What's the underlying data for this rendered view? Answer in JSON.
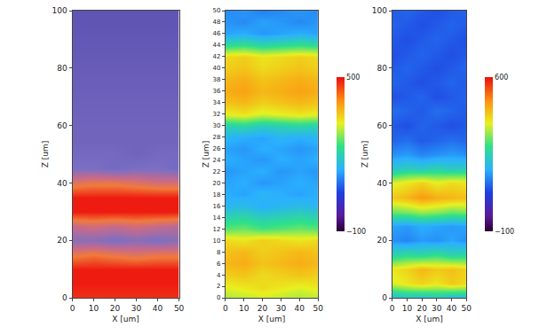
{
  "chart_data": [
    {
      "type": "heatmap",
      "xlabel": "X [um]",
      "ylabel": "Z [um]",
      "x": [
        0,
        10,
        20,
        30,
        40,
        50
      ],
      "y": [
        0,
        5,
        10,
        15,
        20,
        25,
        30,
        35,
        40,
        45,
        50,
        55,
        60,
        65,
        70,
        75,
        80,
        85,
        90,
        95,
        100
      ],
      "z": [
        [
          0.95,
          0.95,
          0.95,
          0.95,
          0.95,
          0.95
        ],
        [
          1,
          1,
          1,
          1,
          1,
          1
        ],
        [
          1,
          1,
          1,
          1,
          1,
          1
        ],
        [
          0.7,
          0.75,
          0.7,
          0.65,
          0.7,
          0.7
        ],
        [
          0.35,
          0.35,
          0.3,
          0.35,
          0.3,
          0.35
        ],
        [
          0.55,
          0.6,
          0.55,
          0.6,
          0.55,
          0.5
        ],
        [
          1,
          1,
          1,
          1,
          1,
          1
        ],
        [
          1,
          1,
          1,
          1,
          1,
          1
        ],
        [
          0.65,
          0.7,
          0.7,
          0.65,
          0.6,
          0.6
        ],
        [
          0.3,
          0.3,
          0.25,
          0.3,
          0.3,
          0.25
        ],
        [
          0.25,
          0.25,
          0.25,
          0.2,
          0.25,
          0.25
        ],
        [
          0.2,
          0.2,
          0.2,
          0.2,
          0.2,
          0.2
        ],
        [
          0.2,
          0.2,
          0.2,
          0.2,
          0.2,
          0.2
        ],
        [
          0.18,
          0.18,
          0.18,
          0.18,
          0.18,
          0.18
        ],
        [
          0.16,
          0.16,
          0.16,
          0.16,
          0.16,
          0.16
        ],
        [
          0.14,
          0.14,
          0.14,
          0.14,
          0.14,
          0.14
        ],
        [
          0.12,
          0.12,
          0.12,
          0.12,
          0.12,
          0.12
        ],
        [
          0.1,
          0.1,
          0.1,
          0.1,
          0.1,
          0.1
        ],
        [
          0.08,
          0.08,
          0.08,
          0.08,
          0.08,
          0.08
        ],
        [
          0.06,
          0.06,
          0.06,
          0.06,
          0.06,
          0.06
        ],
        [
          0.05,
          0.05,
          0.05,
          0.05,
          0.05,
          0.05
        ]
      ],
      "zlim": [
        0,
        1
      ],
      "xlim": [
        0,
        50
      ],
      "xticks": [
        0,
        10,
        20,
        30,
        40,
        50
      ],
      "ylim": [
        0,
        100
      ],
      "yticks": [
        0,
        20,
        40,
        60,
        80,
        100
      ]
    },
    {
      "type": "heatmap",
      "xlabel": "X [um]",
      "ylabel": "Z [um]",
      "x": [
        0,
        10,
        20,
        30,
        40,
        50
      ],
      "y": [
        0,
        2,
        4,
        6,
        8,
        10,
        12,
        14,
        16,
        18,
        20,
        22,
        24,
        26,
        28,
        30,
        32,
        34,
        36,
        38,
        40,
        42,
        44,
        46,
        48,
        50
      ],
      "z": [
        [
          290,
          300,
          310,
          300,
          290,
          300
        ],
        [
          320,
          330,
          340,
          330,
          320,
          330
        ],
        [
          350,
          360,
          340,
          350,
          360,
          350
        ],
        [
          370,
          380,
          360,
          370,
          380,
          370
        ],
        [
          360,
          370,
          350,
          360,
          370,
          360
        ],
        [
          340,
          330,
          350,
          340,
          330,
          340
        ],
        [
          250,
          260,
          240,
          250,
          260,
          250
        ],
        [
          200,
          210,
          190,
          200,
          210,
          200
        ],
        [
          150,
          160,
          140,
          150,
          160,
          150
        ],
        [
          140,
          130,
          150,
          140,
          130,
          140
        ],
        [
          130,
          140,
          120,
          130,
          140,
          130
        ],
        [
          120,
          130,
          140,
          120,
          130,
          120
        ],
        [
          140,
          130,
          120,
          140,
          130,
          140
        ],
        [
          130,
          120,
          140,
          130,
          120,
          130
        ],
        [
          150,
          140,
          130,
          150,
          140,
          150
        ],
        [
          200,
          210,
          190,
          200,
          210,
          200
        ],
        [
          320,
          330,
          310,
          320,
          330,
          320
        ],
        [
          360,
          370,
          350,
          360,
          370,
          360
        ],
        [
          380,
          390,
          370,
          380,
          390,
          380
        ],
        [
          370,
          380,
          360,
          370,
          380,
          370
        ],
        [
          350,
          360,
          340,
          350,
          360,
          350
        ],
        [
          340,
          350,
          330,
          340,
          350,
          340
        ],
        [
          220,
          230,
          210,
          220,
          230,
          220
        ],
        [
          130,
          140,
          120,
          130,
          140,
          130
        ],
        [
          120,
          110,
          130,
          120,
          110,
          120
        ],
        [
          110,
          120,
          100,
          110,
          120,
          110
        ]
      ],
      "zlim": [
        -100,
        500
      ],
      "zticks": [
        -100,
        500
      ],
      "xlim": [
        0,
        50
      ],
      "xticks": [
        0,
        10,
        20,
        30,
        40,
        50
      ],
      "ylim": [
        0,
        50
      ],
      "yticks": [
        0,
        2,
        4,
        6,
        8,
        10,
        12,
        14,
        16,
        18,
        20,
        22,
        24,
        26,
        28,
        30,
        32,
        34,
        36,
        38,
        40,
        42,
        44,
        46,
        48,
        50
      ]
    },
    {
      "type": "heatmap",
      "xlabel": "X [um]",
      "ylabel": "Z [um]",
      "x": [
        0,
        10,
        20,
        30,
        40,
        50
      ],
      "y": [
        0,
        5,
        10,
        15,
        20,
        25,
        30,
        35,
        40,
        45,
        50,
        55,
        60,
        65,
        70,
        75,
        80,
        85,
        90,
        95,
        100
      ],
      "z": [
        [
          200,
          220,
          210,
          230,
          200,
          210
        ],
        [
          380,
          400,
          420,
          400,
          430,
          410
        ],
        [
          400,
          420,
          450,
          430,
          440,
          420
        ],
        [
          250,
          270,
          260,
          280,
          250,
          260
        ],
        [
          150,
          140,
          160,
          150,
          170,
          150
        ],
        [
          170,
          160,
          180,
          170,
          160,
          170
        ],
        [
          320,
          330,
          350,
          340,
          320,
          330
        ],
        [
          430,
          450,
          480,
          460,
          450,
          440
        ],
        [
          380,
          400,
          420,
          390,
          410,
          400
        ],
        [
          220,
          240,
          230,
          250,
          230,
          240
        ],
        [
          150,
          160,
          140,
          150,
          160,
          150
        ],
        [
          110,
          120,
          100,
          110,
          120,
          110
        ],
        [
          100,
          90,
          110,
          100,
          90,
          100
        ],
        [
          120,
          110,
          100,
          120,
          110,
          100
        ],
        [
          90,
          100,
          110,
          90,
          100,
          110
        ],
        [
          110,
          100,
          90,
          100,
          110,
          100
        ],
        [
          100,
          110,
          100,
          90,
          100,
          110
        ],
        [
          90,
          100,
          110,
          100,
          90,
          100
        ],
        [
          100,
          90,
          100,
          110,
          100,
          90
        ],
        [
          110,
          100,
          90,
          100,
          110,
          100
        ],
        [
          100,
          110,
          100,
          90,
          100,
          110
        ]
      ],
      "zlim": [
        -100,
        600
      ],
      "zticks": [
        -100,
        600
      ],
      "xlim": [
        0,
        50
      ],
      "xticks": [
        0,
        10,
        20,
        30,
        40,
        50
      ],
      "ylim": [
        0,
        100
      ],
      "yticks": [
        0,
        20,
        40,
        60,
        80,
        100
      ]
    }
  ]
}
